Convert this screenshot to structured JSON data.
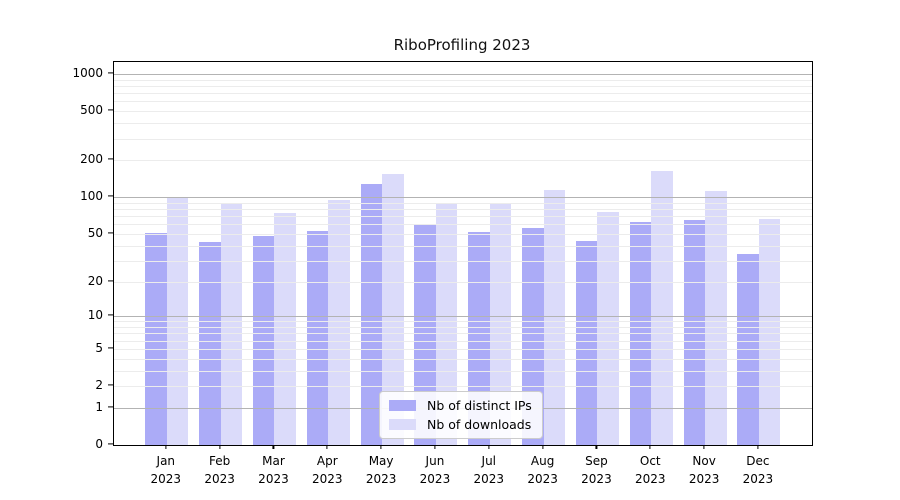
{
  "title": "RiboProfiling 2023",
  "chart_data": {
    "type": "bar",
    "scale": "log1p",
    "title": "RiboProfiling 2023",
    "xlabel": "",
    "ylabel": "",
    "grid": true,
    "legend_position": "lower center",
    "ylim": [
      0,
      1250
    ],
    "yticks": [
      0,
      1,
      2,
      5,
      10,
      20,
      50,
      100,
      200,
      500,
      1000
    ],
    "categories": [
      "Jan 2023",
      "Feb 2023",
      "Mar 2023",
      "Apr 2023",
      "May 2023",
      "Jun 2023",
      "Jul 2023",
      "Aug 2023",
      "Sep 2023",
      "Oct 2023",
      "Nov 2023",
      "Dec 2023"
    ],
    "series": [
      {
        "name": "Nb of distinct IPs",
        "color": "#ababf7",
        "values": [
          51,
          43,
          48,
          53,
          129,
          60,
          52,
          56,
          44,
          63,
          65,
          34
        ]
      },
      {
        "name": "Nb of downloads",
        "color": "#dbdbfa",
        "values": [
          98,
          90,
          74,
          95,
          156,
          88,
          88,
          114,
          75,
          163,
          112,
          66
        ]
      }
    ]
  },
  "axis_colors": {
    "major_gridline": "#b3b3b3",
    "minor_gridline": "#ececec",
    "spine": "#000000"
  }
}
